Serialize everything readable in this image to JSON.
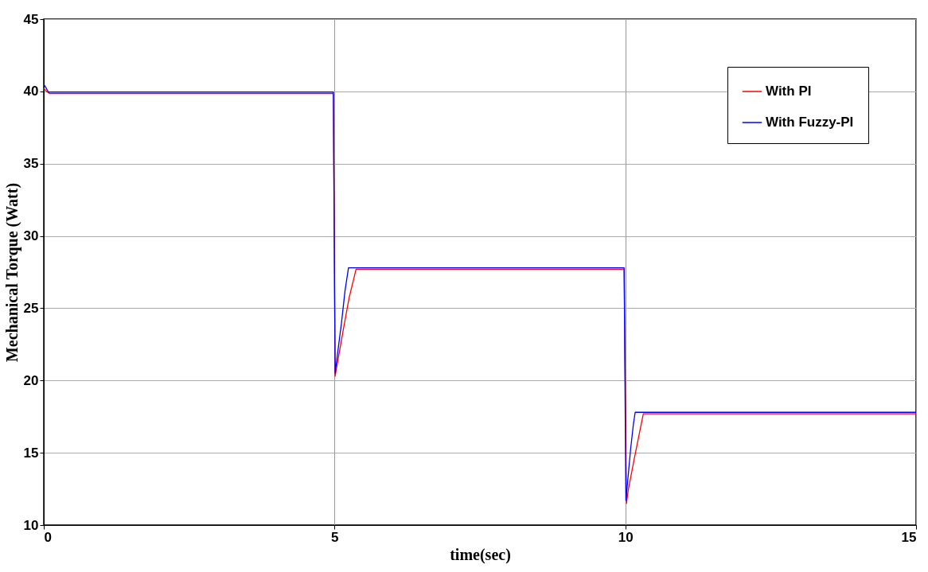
{
  "chart_data": {
    "type": "line",
    "xlabel": "time(sec)",
    "ylabel": "Mechanical Torque (Watt)",
    "xlim": [
      0,
      15
    ],
    "xticks": [
      0,
      5,
      10,
      15
    ],
    "ylim": [
      10,
      45
    ],
    "yticks": [
      10,
      15,
      20,
      25,
      30,
      35,
      40,
      45
    ],
    "grid": true,
    "legend": "top right",
    "marker": "none",
    "line_style": "solid",
    "series": [
      {
        "name": "With PI",
        "color": "#ff0000",
        "x": [
          0,
          0.05,
          0.1,
          4.98,
          5.01,
          5.05,
          5.15,
          5.25,
          5.37,
          9.98,
          10.02,
          10.05,
          10.15,
          10.25,
          10.31,
          15
        ],
        "values": [
          40.2,
          40.0,
          39.85,
          39.85,
          20.3,
          21.2,
          23.5,
          25.7,
          27.7,
          27.7,
          11.5,
          12.4,
          14.5,
          16.5,
          17.7,
          17.7
        ]
      },
      {
        "name": "With Fuzzy-PI",
        "color": "#0000ff",
        "x": [
          0,
          0.03,
          0.08,
          4.98,
          5.01,
          5.05,
          5.12,
          5.18,
          5.24,
          9.98,
          10.01,
          10.04,
          10.09,
          10.14,
          10.17,
          15
        ],
        "values": [
          40.5,
          40.3,
          39.95,
          39.95,
          20.5,
          21.8,
          24.0,
          26.2,
          27.8,
          27.8,
          11.7,
          13.0,
          15.2,
          17.0,
          17.8,
          17.8
        ]
      }
    ]
  }
}
